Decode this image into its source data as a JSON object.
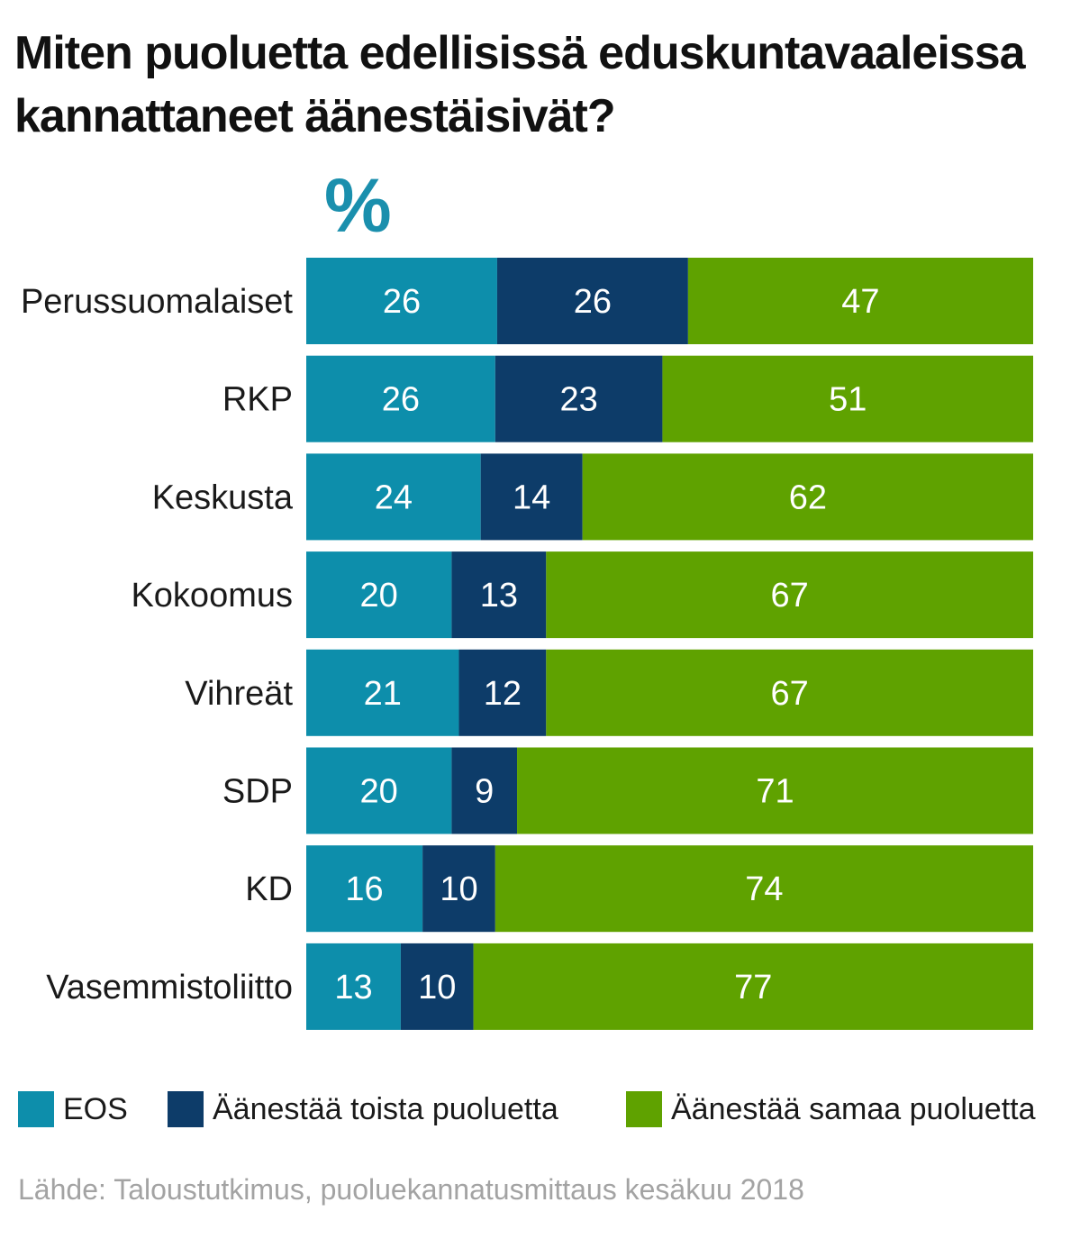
{
  "title": "Miten puoluetta edellisissä eduskuntavaaleissa kannattaneet äänestäisivät?",
  "unit_label": "%",
  "chart_data": {
    "type": "bar",
    "orientation": "horizontal",
    "stacked": true,
    "title": "Miten puoluetta edellisissä eduskuntavaaleissa kannattaneet äänestäisivät?",
    "ylabel": "%",
    "xlim": [
      0,
      100
    ],
    "categories": [
      "Perussuomalaiset",
      "RKP",
      "Keskusta",
      "Kokoomus",
      "Vihreät",
      "SDP",
      "KD",
      "Vasemmistoliitto"
    ],
    "series": [
      {
        "name": "EOS",
        "color": "#0d8eab",
        "values": [
          26,
          26,
          24,
          20,
          21,
          20,
          16,
          13
        ]
      },
      {
        "name": "Äänestää toista puoluetta",
        "color": "#0d3c69",
        "values": [
          26,
          23,
          14,
          13,
          12,
          9,
          10,
          10
        ]
      },
      {
        "name": "Äänestää samaa puoluetta",
        "color": "#5fa200",
        "values": [
          47,
          51,
          62,
          67,
          67,
          71,
          74,
          77
        ]
      }
    ]
  },
  "legend": [
    {
      "label": "EOS",
      "color": "#0d8eab"
    },
    {
      "label": "Äänestää toista puoluetta",
      "color": "#0d3c69"
    },
    {
      "label": "Äänestää samaa puoluetta",
      "color": "#5fa200"
    }
  ],
  "source": "Lähde: Taloustutkimus, puoluekannatusmittaus kesäkuu 2018"
}
